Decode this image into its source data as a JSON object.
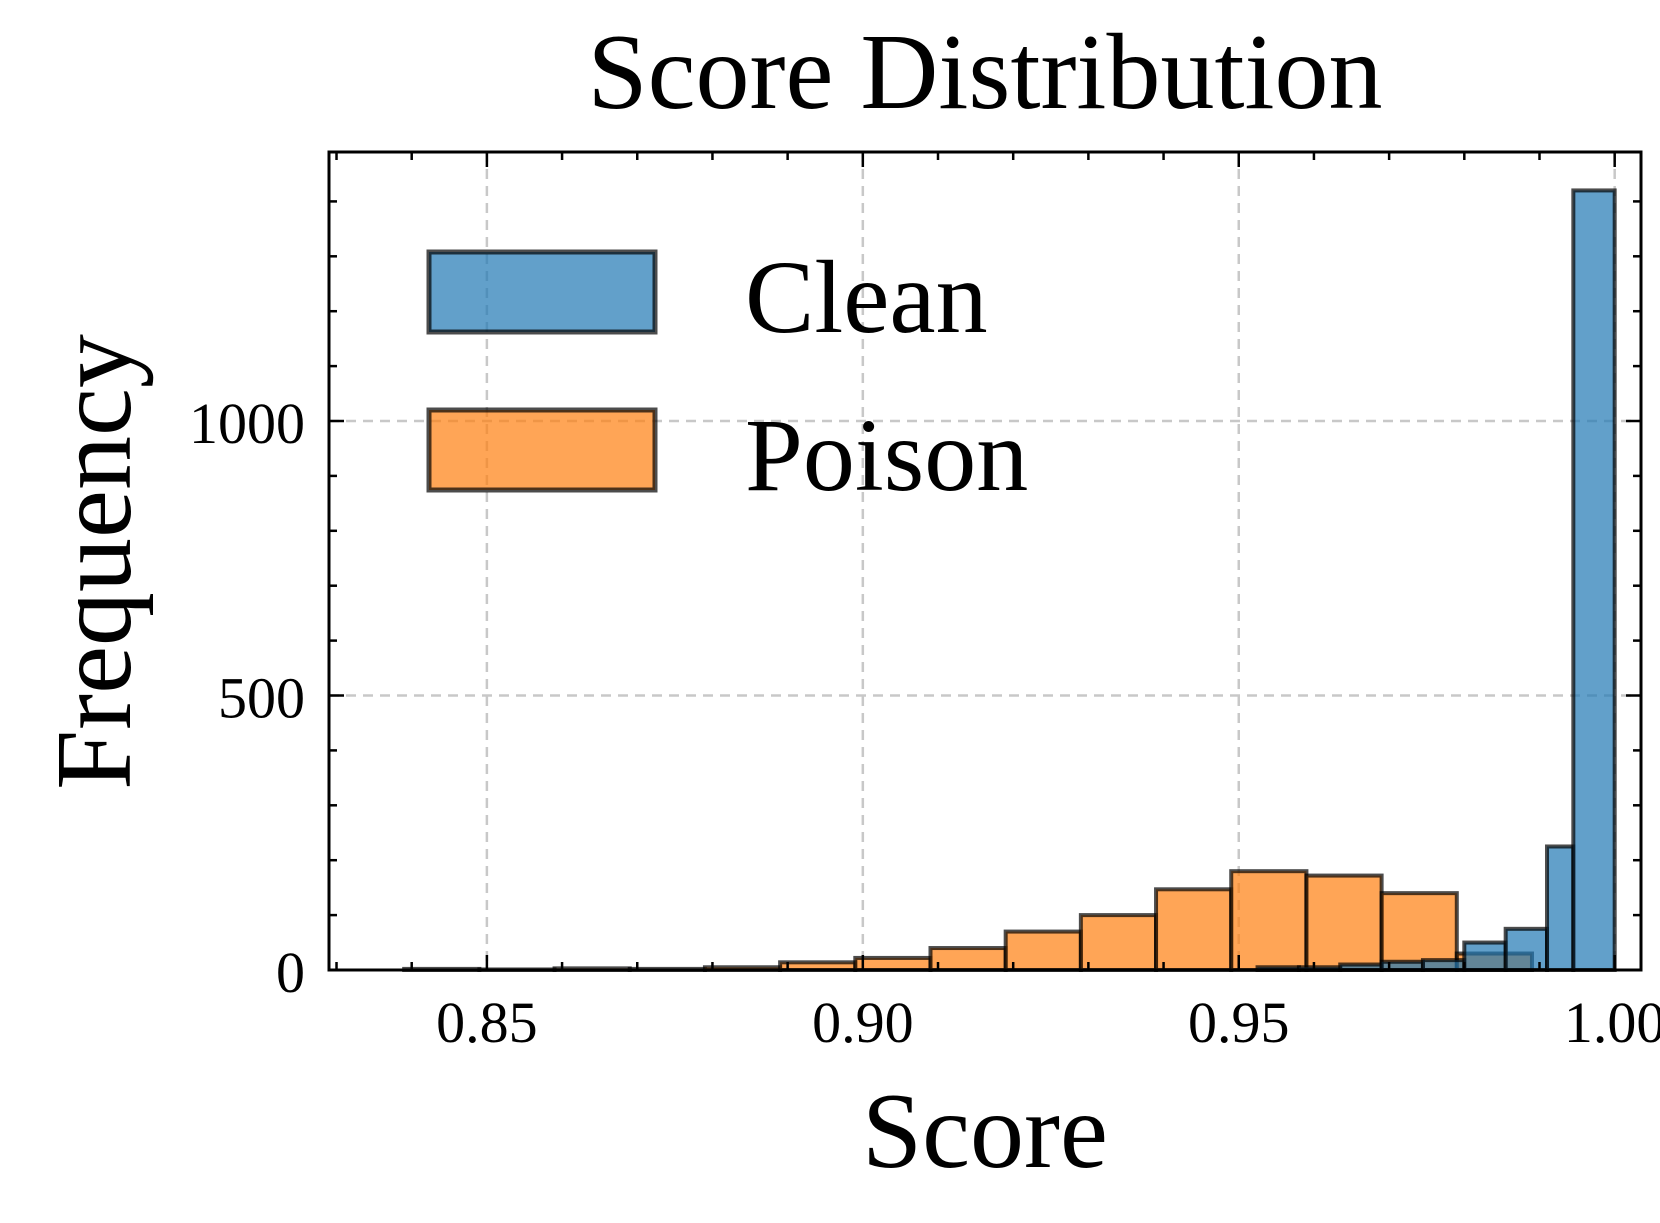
{
  "chart_data": {
    "type": "bar",
    "title": "Score Distribution",
    "xlabel": "Score",
    "ylabel": "Frequency",
    "xlim": [
      0.829,
      1.0035
    ],
    "ylim": [
      0,
      1490
    ],
    "x_ticks": [
      0.85,
      0.9,
      0.95,
      1.0
    ],
    "x_tick_labels": [
      "0.85",
      "0.90",
      "0.95",
      "1.00"
    ],
    "y_ticks": [
      0,
      500,
      1000
    ],
    "y_tick_labels": [
      "0",
      "500",
      "1000"
    ],
    "grid": true,
    "legend": "top-left",
    "series": [
      {
        "name": "Poison",
        "color": "#ff7f0e",
        "bins": [
          {
            "x0": 0.839,
            "x1": 0.849,
            "value": 2
          },
          {
            "x0": 0.849,
            "x1": 0.859,
            "value": 1
          },
          {
            "x0": 0.859,
            "x1": 0.869,
            "value": 3
          },
          {
            "x0": 0.869,
            "x1": 0.879,
            "value": 2
          },
          {
            "x0": 0.879,
            "x1": 0.889,
            "value": 5
          },
          {
            "x0": 0.889,
            "x1": 0.899,
            "value": 14
          },
          {
            "x0": 0.899,
            "x1": 0.909,
            "value": 22
          },
          {
            "x0": 0.909,
            "x1": 0.919,
            "value": 40
          },
          {
            "x0": 0.919,
            "x1": 0.929,
            "value": 70
          },
          {
            "x0": 0.929,
            "x1": 0.939,
            "value": 100
          },
          {
            "x0": 0.939,
            "x1": 0.949,
            "value": 147
          },
          {
            "x0": 0.949,
            "x1": 0.959,
            "value": 180
          },
          {
            "x0": 0.959,
            "x1": 0.969,
            "value": 172
          },
          {
            "x0": 0.969,
            "x1": 0.979,
            "value": 140
          },
          {
            "x0": 0.979,
            "x1": 0.989,
            "value": 30
          }
        ]
      },
      {
        "name": "Clean",
        "color": "#1f77b4",
        "bins": [
          {
            "x0": 0.9525,
            "x1": 0.958,
            "value": 5
          },
          {
            "x0": 0.958,
            "x1": 0.9635,
            "value": 5
          },
          {
            "x0": 0.9635,
            "x1": 0.969,
            "value": 10
          },
          {
            "x0": 0.969,
            "x1": 0.9745,
            "value": 15
          },
          {
            "x0": 0.9745,
            "x1": 0.98,
            "value": 18
          },
          {
            "x0": 0.98,
            "x1": 0.9855,
            "value": 50
          },
          {
            "x0": 0.9855,
            "x1": 0.991,
            "value": 75
          },
          {
            "x0": 0.991,
            "x1": 0.9945,
            "value": 225
          },
          {
            "x0": 0.9945,
            "x1": 1.0,
            "value": 1420
          }
        ]
      }
    ]
  },
  "legend": {
    "items": [
      {
        "label": "Clean",
        "color": "#1f77b4"
      },
      {
        "label": "Poison",
        "color": "#ff7f0e"
      }
    ]
  }
}
